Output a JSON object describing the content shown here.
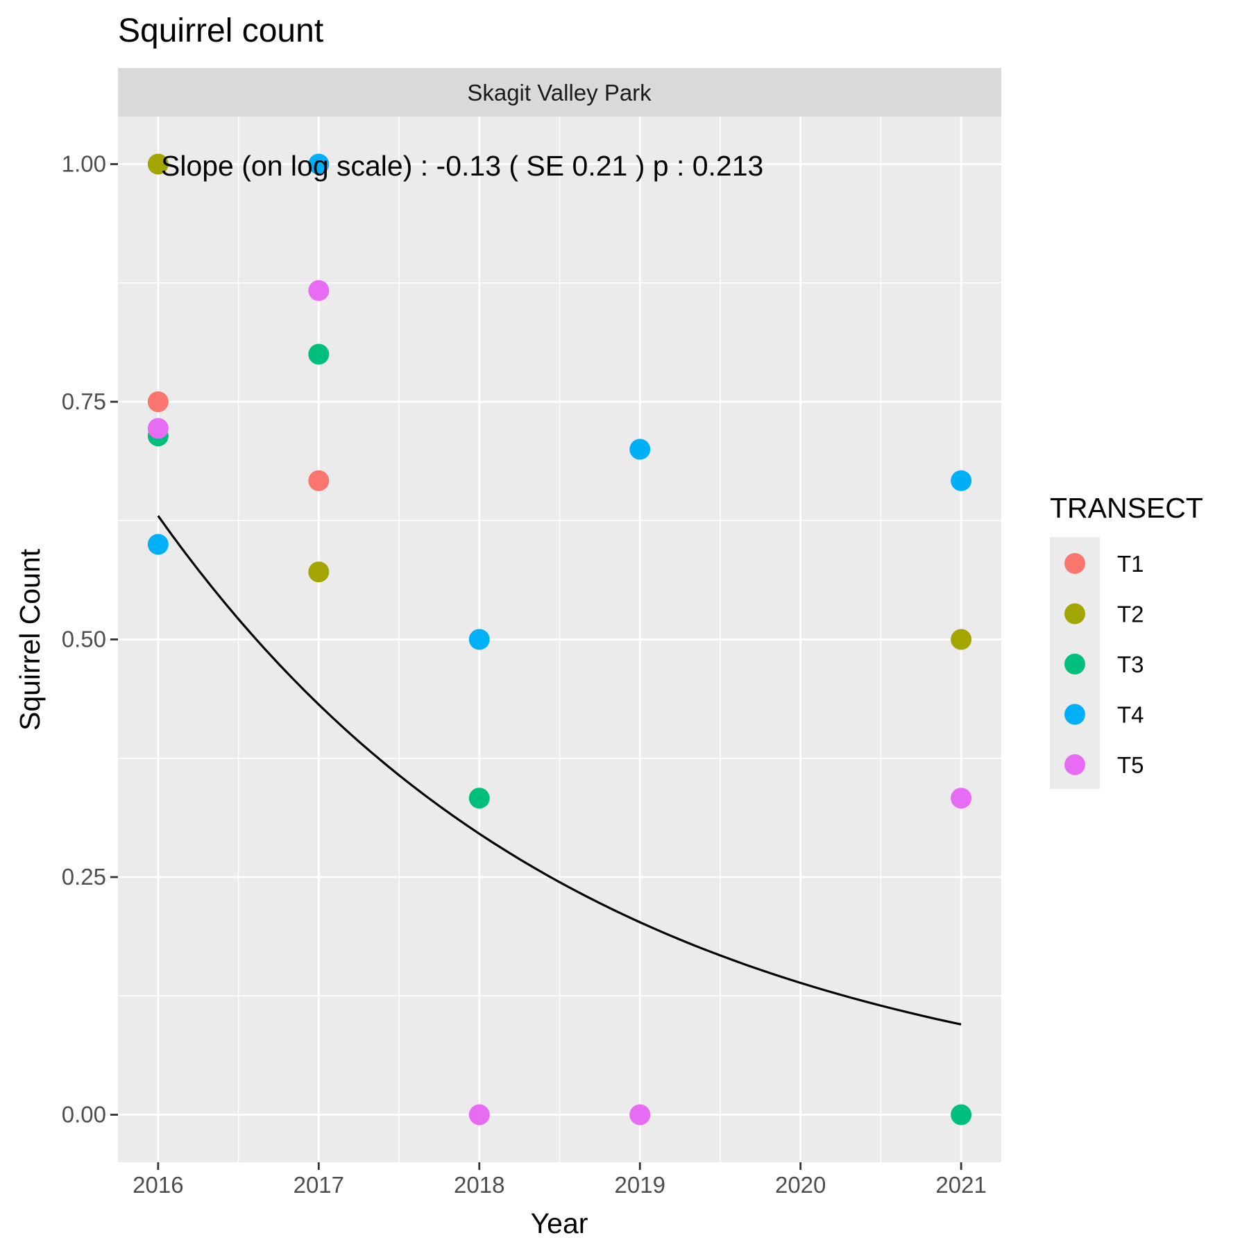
{
  "chart_data": {
    "type": "scatter",
    "title": "Squirrel count",
    "facet_label": "Skagit Valley Park",
    "xlabel": "Year",
    "ylabel": "Squirrel Count",
    "x_ticks": [
      "2016",
      "2017",
      "2018",
      "2019",
      "2020",
      "2021"
    ],
    "y_ticks": [
      "0.00",
      "0.25",
      "0.50",
      "0.75",
      "1.00"
    ],
    "xlim": [
      2015.75,
      2021.25
    ],
    "ylim": [
      -0.05,
      1.05
    ],
    "grid": true,
    "legend": {
      "title": "TRANSECT",
      "position": "right"
    },
    "annotation": "Slope (on log scale) :  -0.13  ( SE  0.21 )  p : 0.213",
    "series": [
      {
        "name": "T1",
        "color": "#F8766D",
        "points": [
          [
            2016,
            0.75
          ],
          [
            2017,
            0.667
          ]
        ]
      },
      {
        "name": "T2",
        "color": "#A3A500",
        "points": [
          [
            2016,
            1.0
          ],
          [
            2017,
            0.571
          ],
          [
            2021,
            0.5
          ]
        ]
      },
      {
        "name": "T3",
        "color": "#00BF7D",
        "points": [
          [
            2016,
            0.714
          ],
          [
            2017,
            0.8
          ],
          [
            2018,
            0.333
          ],
          [
            2021,
            0.0
          ]
        ]
      },
      {
        "name": "T4",
        "color": "#00B0F6",
        "points": [
          [
            2016,
            0.6
          ],
          [
            2017,
            1.0
          ],
          [
            2018,
            0.5
          ],
          [
            2019,
            0.7
          ],
          [
            2021,
            0.667
          ]
        ]
      },
      {
        "name": "T5",
        "color": "#E76BF3",
        "points": [
          [
            2016,
            0.722
          ],
          [
            2017,
            0.867
          ],
          [
            2018,
            0.0
          ],
          [
            2019,
            0.0
          ],
          [
            2021,
            0.333
          ]
        ]
      }
    ],
    "trend_line": {
      "x": [
        2016,
        2021
      ],
      "y_start": 0.63,
      "y_end": 0.095
    }
  }
}
